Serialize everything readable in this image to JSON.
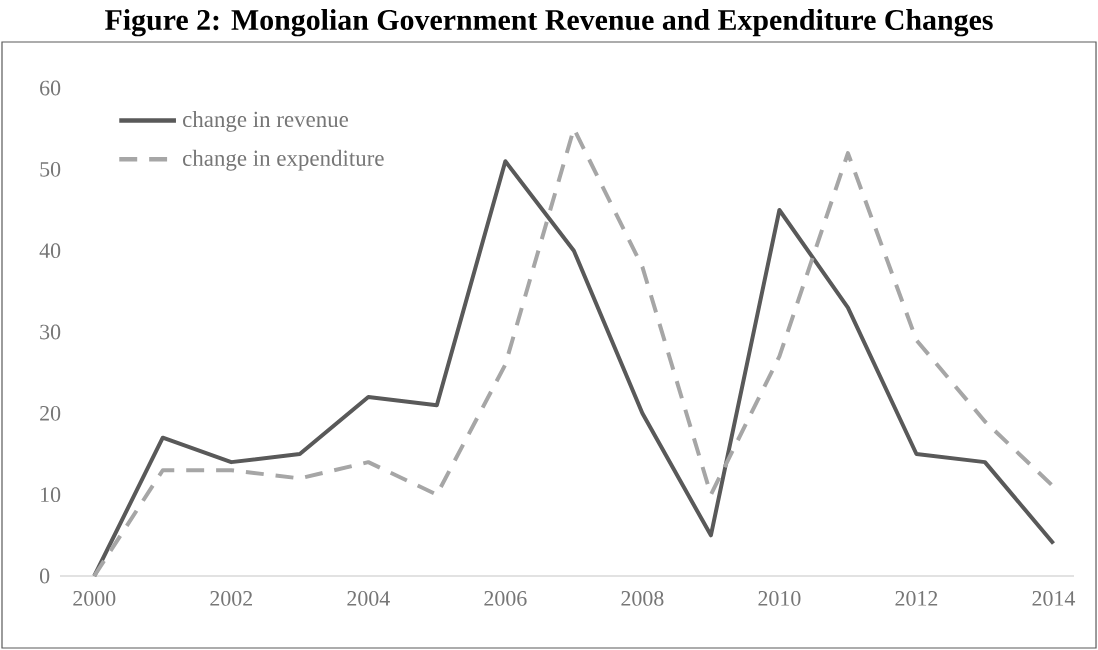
{
  "chart_data": {
    "type": "line",
    "title": "Figure 2:  Mongolian Government Revenue and Expenditure Changes",
    "x": [
      2000,
      2001,
      2002,
      2003,
      2004,
      2005,
      2006,
      2007,
      2008,
      2009,
      2010,
      2011,
      2012,
      2013,
      2014
    ],
    "series": [
      {
        "name": "change in revenue",
        "color": "#595959",
        "line_style": "solid",
        "values": [
          0,
          17,
          14,
          15,
          22,
          21,
          51,
          40,
          20,
          5,
          45,
          33,
          15,
          14,
          4
        ]
      },
      {
        "name": "change in expenditure",
        "color": "#a6a6a6",
        "line_style": "dashed",
        "values": [
          0,
          13,
          13,
          12,
          14,
          10,
          26,
          55,
          38,
          10,
          27,
          52,
          29,
          19,
          11
        ]
      }
    ],
    "xlim": [
      1999.5,
      2014.3
    ],
    "ylim": [
      0,
      60
    ],
    "xticks": [
      2000,
      2002,
      2004,
      2006,
      2008,
      2010,
      2012,
      2014
    ],
    "yticks": [
      0,
      10,
      20,
      30,
      40,
      50,
      60
    ],
    "legend": "top left"
  }
}
